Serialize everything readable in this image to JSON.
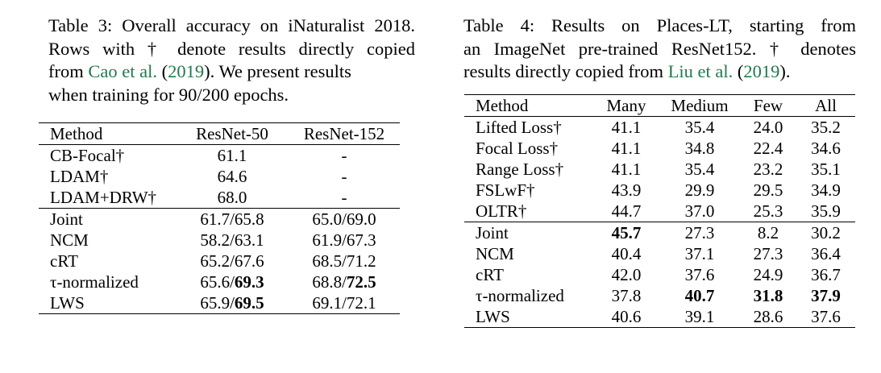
{
  "table3": {
    "caption_lines": [
      [
        "Table 3: Overall accuracy on iNaturalist 2018."
      ],
      [
        "Rows with † denote results directly copied"
      ],
      [
        "from ",
        "Cao et al.",
        " (",
        "2019",
        ").  We present results"
      ],
      [
        "when training for 90/200 epochs."
      ]
    ],
    "caption": {
      "l1": "Table 3: Overall accuracy on iNaturalist 2018.",
      "l2": "Rows with † denote results directly copied",
      "l3_a": "from ",
      "l3_cite": "Cao et al.",
      "l3_b": " (",
      "l3_year": "2019",
      "l3_c": ").  We present results",
      "l4": "when training for 90/200 epochs."
    },
    "headers": [
      "Method",
      "ResNet-50",
      "ResNet-152"
    ],
    "group1": [
      [
        "CB-Focal†",
        "61.1",
        "-"
      ],
      [
        "LDAM†",
        "64.6",
        "-"
      ],
      [
        "LDAM+DRW†",
        "68.0",
        "-"
      ]
    ],
    "group2": [
      [
        "Joint",
        "61.7/65.8",
        "65.0/69.0"
      ],
      [
        "NCM",
        "58.2/63.1",
        "61.9/67.3"
      ],
      [
        "cRT",
        "65.2/67.6",
        "68.5/71.2"
      ],
      [
        "τ-normalized",
        "65.6/",
        "69.3",
        "68.8/",
        "72.5"
      ],
      [
        "LWS",
        "65.9/",
        "69.5",
        "69.1/72.1"
      ]
    ]
  },
  "table4": {
    "caption": {
      "l1": "Table 4:  Results on Places-LT, starting from",
      "l2": "an ImageNet pre-trained ResNet152. † denotes",
      "l3_a": "results directly copied from ",
      "l3_cite": "Liu et al.",
      "l3_b": " (",
      "l3_year": "2019",
      "l3_c": ")."
    },
    "headers": [
      "Method",
      "Many",
      "Medium",
      "Few",
      "All"
    ],
    "group1": [
      [
        "Lifted Loss†",
        "41.1",
        "35.4",
        "24.0",
        "35.2"
      ],
      [
        "Focal Loss†",
        "41.1",
        "34.8",
        "22.4",
        "34.6"
      ],
      [
        "Range Loss†",
        "41.1",
        "35.4",
        "23.2",
        "35.1"
      ],
      [
        "FSLwF†",
        "43.9",
        "29.9",
        "29.5",
        "34.9"
      ],
      [
        "OLTR†",
        "44.7",
        "37.0",
        "25.3",
        "35.9"
      ]
    ],
    "group2": [
      [
        "Joint",
        "45.7",
        "27.3",
        "8.2",
        "30.2"
      ],
      [
        "NCM",
        "40.4",
        "37.1",
        "27.3",
        "36.4"
      ],
      [
        "cRT",
        "42.0",
        "37.6",
        "24.9",
        "36.7"
      ],
      [
        "τ-normalized",
        "37.8",
        "40.7",
        "31.8",
        "37.9"
      ],
      [
        "LWS",
        "40.6",
        "39.1",
        "28.6",
        "37.6"
      ]
    ]
  }
}
